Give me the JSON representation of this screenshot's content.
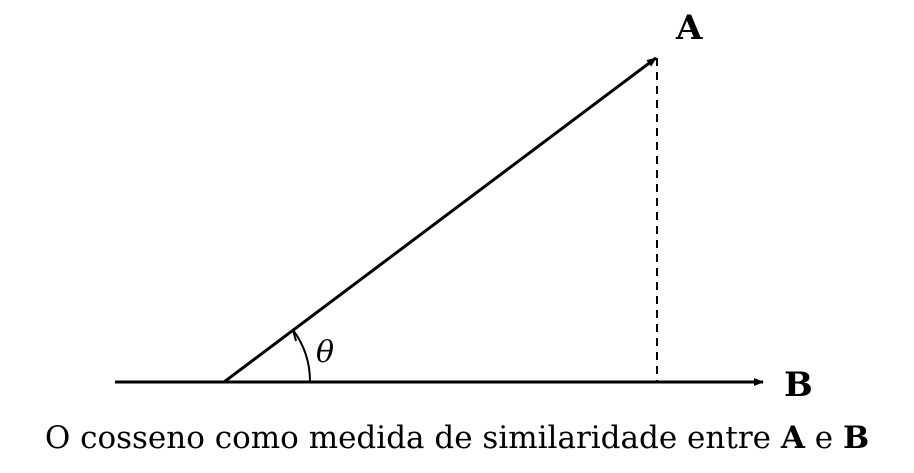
{
  "diagram": {
    "vector_a_label": "A",
    "vector_b_label": "B",
    "angle_label": "θ",
    "line_color": "#000000"
  },
  "caption": {
    "text_before": "O cosseno como medida de similaridade entre ",
    "vector_a": "A",
    "conjunction": " e ",
    "vector_b": "B"
  }
}
